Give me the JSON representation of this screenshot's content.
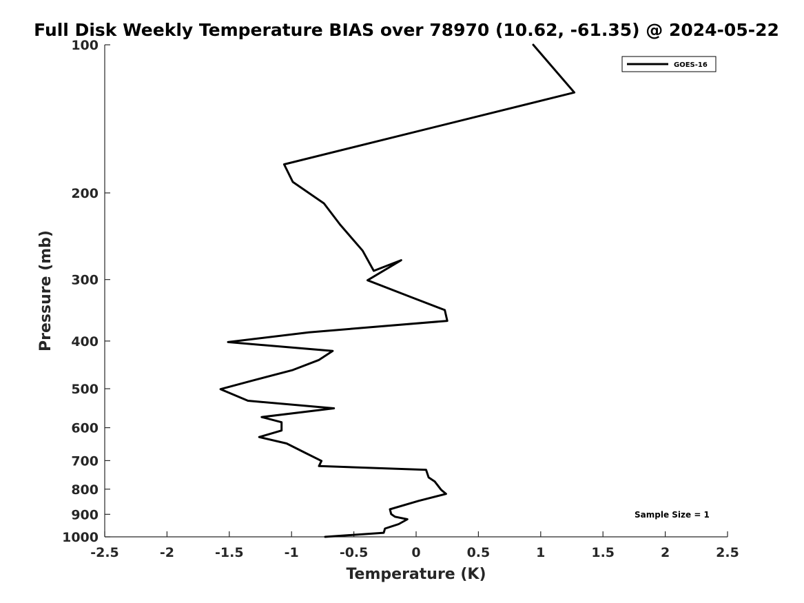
{
  "chart_data": {
    "type": "line",
    "title": "Full Disk Weekly Temperature BIAS over 78970 (10.62, -61.35) @ 2024-05-22",
    "xlabel": "Temperature (K)",
    "ylabel": "Pressure (mb)",
    "xlim": [
      -2.5,
      2.5
    ],
    "ylim": [
      100,
      1000
    ],
    "y_scale": "log",
    "y_reversed": true,
    "x_ticks": [
      "-2.5",
      "-2",
      "-1.5",
      "-1",
      "-0.5",
      "0",
      "0.5",
      "1",
      "1.5",
      "2",
      "2.5"
    ],
    "y_ticks": [
      "100",
      "200",
      "300",
      "400",
      "500",
      "600",
      "700",
      "800",
      "900",
      "1000"
    ],
    "grid": false,
    "legend_position": "top-right",
    "series": [
      {
        "name": "GOES-16",
        "color": "#000000",
        "points": [
          {
            "x": 0.94,
            "p": 100
          },
          {
            "x": 1.27,
            "p": 125
          },
          {
            "x": -1.06,
            "p": 175
          },
          {
            "x": -0.99,
            "p": 190
          },
          {
            "x": -0.74,
            "p": 210
          },
          {
            "x": -0.61,
            "p": 232
          },
          {
            "x": -0.43,
            "p": 262
          },
          {
            "x": -0.34,
            "p": 288
          },
          {
            "x": -0.12,
            "p": 274
          },
          {
            "x": -0.39,
            "p": 301
          },
          {
            "x": -0.05,
            "p": 325
          },
          {
            "x": 0.23,
            "p": 346
          },
          {
            "x": 0.25,
            "p": 364
          },
          {
            "x": -0.86,
            "p": 384
          },
          {
            "x": -1.51,
            "p": 402
          },
          {
            "x": -0.67,
            "p": 419
          },
          {
            "x": -0.78,
            "p": 437
          },
          {
            "x": -0.99,
            "p": 458
          },
          {
            "x": -1.31,
            "p": 481
          },
          {
            "x": -1.57,
            "p": 501
          },
          {
            "x": -1.35,
            "p": 529
          },
          {
            "x": -0.66,
            "p": 548
          },
          {
            "x": -1.24,
            "p": 571
          },
          {
            "x": -1.08,
            "p": 585
          },
          {
            "x": -1.08,
            "p": 608
          },
          {
            "x": -1.26,
            "p": 627
          },
          {
            "x": -1.04,
            "p": 646
          },
          {
            "x": -0.89,
            "p": 675
          },
          {
            "x": -0.76,
            "p": 701
          },
          {
            "x": -0.78,
            "p": 718
          },
          {
            "x": 0.08,
            "p": 731
          },
          {
            "x": 0.1,
            "p": 757
          },
          {
            "x": 0.15,
            "p": 772
          },
          {
            "x": 0.2,
            "p": 802
          },
          {
            "x": 0.24,
            "p": 818
          },
          {
            "x": 0.02,
            "p": 845
          },
          {
            "x": -0.21,
            "p": 879
          },
          {
            "x": -0.2,
            "p": 899
          },
          {
            "x": -0.17,
            "p": 910
          },
          {
            "x": -0.07,
            "p": 921
          },
          {
            "x": -0.14,
            "p": 942
          },
          {
            "x": -0.25,
            "p": 962
          },
          {
            "x": -0.26,
            "p": 981
          },
          {
            "x": -0.73,
            "p": 1000
          }
        ]
      }
    ],
    "annotations": [
      "Sample Size = 1"
    ]
  }
}
